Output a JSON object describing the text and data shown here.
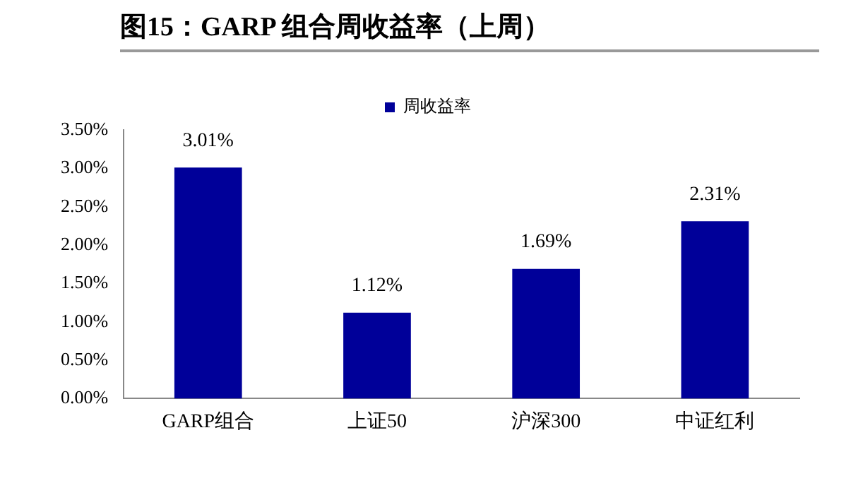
{
  "chart_data": {
    "type": "bar",
    "title": "图15：GARP 组合周收益率（上周）",
    "categories": [
      "GARP组合",
      "上证50",
      "沪深300",
      "中证红利"
    ],
    "series": [
      {
        "name": "周收益率",
        "color": "#000099",
        "values": [
          3.01,
          1.12,
          1.69,
          2.31
        ],
        "value_labels": [
          "3.01%",
          "1.12%",
          "1.69%",
          "2.31%"
        ]
      }
    ],
    "ylim": [
      0,
      3.5
    ],
    "yticks": [
      {
        "value": 0,
        "label": "0.00%"
      },
      {
        "value": 0.5,
        "label": "0.50%"
      },
      {
        "value": 1,
        "label": "1.00%"
      },
      {
        "value": 1.5,
        "label": "1.50%"
      },
      {
        "value": 2,
        "label": "2.00%"
      },
      {
        "value": 2.5,
        "label": "2.50%"
      },
      {
        "value": 3,
        "label": "3.00%"
      },
      {
        "value": 3.5,
        "label": "3.50%"
      }
    ],
    "grid": false,
    "legend": "top"
  }
}
